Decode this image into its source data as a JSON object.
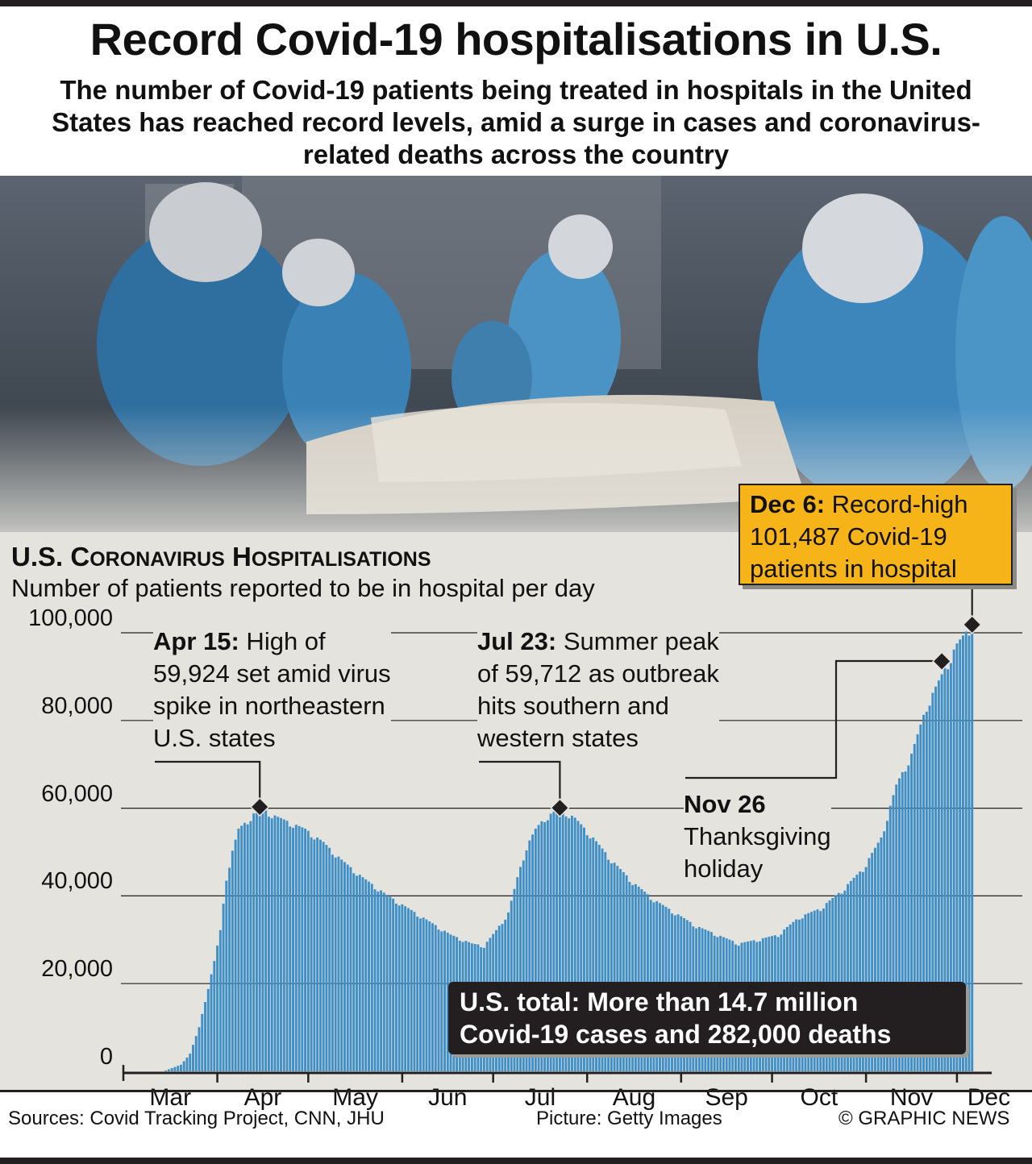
{
  "header": {
    "title": "Record Covid-19 hospitalisations in U.S.",
    "subtitle": "The number of Covid-19 patients being treated in hospitals in the United States has reached record levels, amid a surge in cases and coronavirus-related deaths across the country"
  },
  "colors": {
    "bar": "#3f8fc6",
    "chart_bg": "#e4e3dd",
    "callout": "#f7b418",
    "dark": "#231f20"
  },
  "chart_data": {
    "type": "bar",
    "title_prefix_1": "U.S. C",
    "title_smallcaps_1": "ORONAVIRUS",
    "title_prefix_2": "H",
    "title_smallcaps_2": "OSPITALISATIONS",
    "subtitle": "Number of patients reported to be in hospital per day",
    "ylim": [
      0,
      100000
    ],
    "y_ticks": [
      0,
      20000,
      40000,
      60000,
      80000,
      100000
    ],
    "y_tick_labels": [
      "0",
      "20,000",
      "40,000",
      "60,000",
      "80,000",
      "100,000"
    ],
    "x_tick_labels": [
      "Mar",
      "Apr",
      "May",
      "Jun",
      "Jul",
      "Aug",
      "Sep",
      "Oct",
      "Nov",
      "Dec"
    ],
    "month_starts": [
      "2020-03-01",
      "2020-04-01",
      "2020-05-01",
      "2020-06-01",
      "2020-07-01",
      "2020-08-01",
      "2020-09-01",
      "2020-10-01",
      "2020-11-01",
      "2020-12-01"
    ],
    "series": [
      {
        "points": [
          [
            "2020-03-15",
            200
          ],
          [
            "2020-03-20",
            1500
          ],
          [
            "2020-03-23",
            4000
          ],
          [
            "2020-03-26",
            10000
          ],
          [
            "2020-03-28",
            16000
          ],
          [
            "2020-03-31",
            25000
          ],
          [
            "2020-04-02",
            32000
          ],
          [
            "2020-04-04",
            44000
          ],
          [
            "2020-04-06",
            50000
          ],
          [
            "2020-04-08",
            55000
          ],
          [
            "2020-04-11",
            57000
          ],
          [
            "2020-04-15",
            59924
          ],
          [
            "2020-04-20",
            58000
          ],
          [
            "2020-04-25",
            56500
          ],
          [
            "2020-04-30",
            55000
          ],
          [
            "2020-05-06",
            52000
          ],
          [
            "2020-05-12",
            48000
          ],
          [
            "2020-05-19",
            44000
          ],
          [
            "2020-05-27",
            40000
          ],
          [
            "2020-06-03",
            37000
          ],
          [
            "2020-06-10",
            34000
          ],
          [
            "2020-06-17",
            31000
          ],
          [
            "2020-06-24",
            29000
          ],
          [
            "2020-06-28",
            28500
          ],
          [
            "2020-07-02",
            32000
          ],
          [
            "2020-07-06",
            36000
          ],
          [
            "2020-07-09",
            44000
          ],
          [
            "2020-07-12",
            51000
          ],
          [
            "2020-07-15",
            55000
          ],
          [
            "2020-07-18",
            57500
          ],
          [
            "2020-07-23",
            59712
          ],
          [
            "2020-07-28",
            57500
          ],
          [
            "2020-08-03",
            53000
          ],
          [
            "2020-08-09",
            48000
          ],
          [
            "2020-08-16",
            43000
          ],
          [
            "2020-08-23",
            39000
          ],
          [
            "2020-08-30",
            36000
          ],
          [
            "2020-09-06",
            33000
          ],
          [
            "2020-09-13",
            31000
          ],
          [
            "2020-09-20",
            29000
          ],
          [
            "2020-09-27",
            30000
          ],
          [
            "2020-10-03",
            31000
          ],
          [
            "2020-10-10",
            35000
          ],
          [
            "2020-10-17",
            37000
          ],
          [
            "2020-10-24",
            41000
          ],
          [
            "2020-10-31",
            46000
          ],
          [
            "2020-11-06",
            53000
          ],
          [
            "2020-11-11",
            65000
          ],
          [
            "2020-11-16",
            72000
          ],
          [
            "2020-11-21",
            83000
          ],
          [
            "2020-11-26",
            90000
          ],
          [
            "2020-12-01",
            97000
          ],
          [
            "2020-12-06",
            101487
          ]
        ]
      }
    ],
    "annotations": [
      {
        "id": "apr",
        "date": "2020-04-15",
        "value": 59924,
        "bold": "Apr 15:",
        "lines": [
          " High of",
          "59,924 set amid virus",
          "spike in northeastern",
          "U.S. states"
        ]
      },
      {
        "id": "jul",
        "date": "2020-07-23",
        "value": 59712,
        "bold": "Jul 23:",
        "lines": [
          " Summer peak",
          "of 59,712 as outbreak",
          "hits southern and",
          "western states"
        ]
      },
      {
        "id": "nov",
        "date": "2020-11-26",
        "value": 93500,
        "bold": "Nov 26",
        "lines": [
          "Thanksgiving",
          "holiday"
        ]
      },
      {
        "id": "dec",
        "date": "2020-12-06",
        "value": 101487,
        "bold": "Dec 6:",
        "lines": [
          " Record-high",
          "101,487 Covid-19",
          "patients in hospital"
        ]
      }
    ],
    "total_box": [
      "U.S. total: More than 14.7 million",
      "Covid-19 cases and 282,000 deaths"
    ]
  },
  "footer": {
    "sources": "Sources: Covid Tracking Project, CNN, JHU",
    "picture": "Picture: Getty Images",
    "copyright": "© GRAPHIC NEWS"
  }
}
